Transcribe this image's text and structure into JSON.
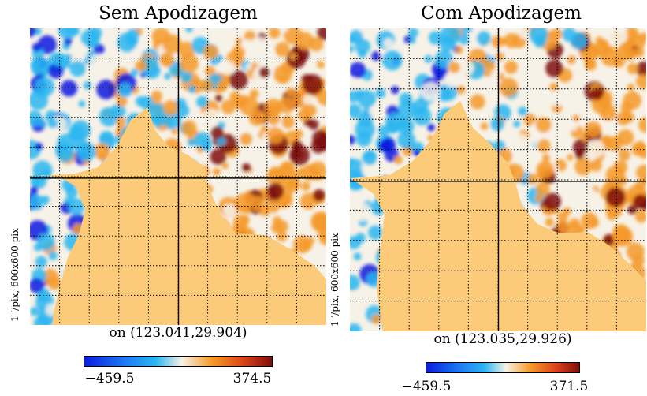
{
  "chart_data": [
    {
      "type": "heatmap",
      "title": "Sem Apodizagem",
      "side_label": "1 ′/pix, 600x600 pix",
      "center_label": "on (123.041,29.904)",
      "colorbar": {
        "min": -459.5,
        "max": 374.5,
        "min_label": "−459.5",
        "max_label": "374.5"
      },
      "grid": true,
      "seed": 7
    },
    {
      "type": "heatmap",
      "title": "Com Apodizagem",
      "side_label": "1 ′/pix, 600x600 pix",
      "center_label": "on (123.035,29.926)",
      "colorbar": {
        "min": -459.5,
        "max": 371.5,
        "min_label": "−459.5",
        "max_label": "371.5"
      },
      "grid": true,
      "seed": 11
    }
  ],
  "colors": {
    "mask_fill": "#FBCB7A",
    "cold_deep": "#0A1BE0",
    "cold": "#2BB6F0",
    "neutral": "#F7F2E8",
    "warm": "#F59A2A",
    "hot_deep": "#7E0E0A"
  }
}
